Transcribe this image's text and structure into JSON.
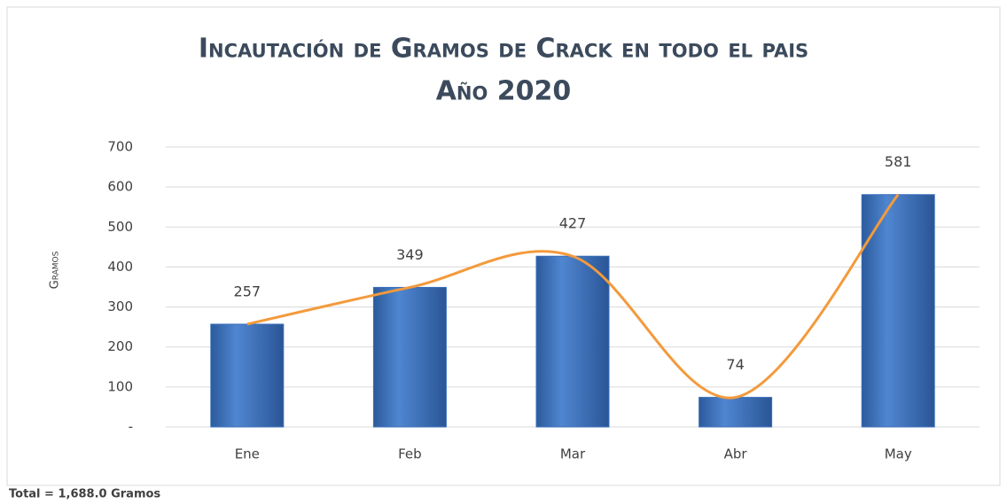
{
  "chart_data": {
    "type": "bar",
    "title": "Incautación de Gramos de Crack en todo el pais",
    "subtitle": "Año 2020",
    "y_label": "Gramos",
    "footnote": "Total = 1,688.0 Gramos",
    "categories": [
      "Ene",
      "Feb",
      "Mar",
      "Abr",
      "May"
    ],
    "series": [
      {
        "type": "bar",
        "color": "#3a6fba",
        "values": [
          257,
          349,
          427,
          74,
          581
        ]
      },
      {
        "type": "line",
        "color": "#f39a3c",
        "values": [
          257,
          349,
          427,
          74,
          581
        ]
      }
    ],
    "ylim": [
      0,
      700
    ],
    "yticks": [
      {
        "value": 0,
        "label": "-"
      },
      100,
      200,
      300,
      400,
      500,
      600,
      700
    ],
    "grid": true
  }
}
